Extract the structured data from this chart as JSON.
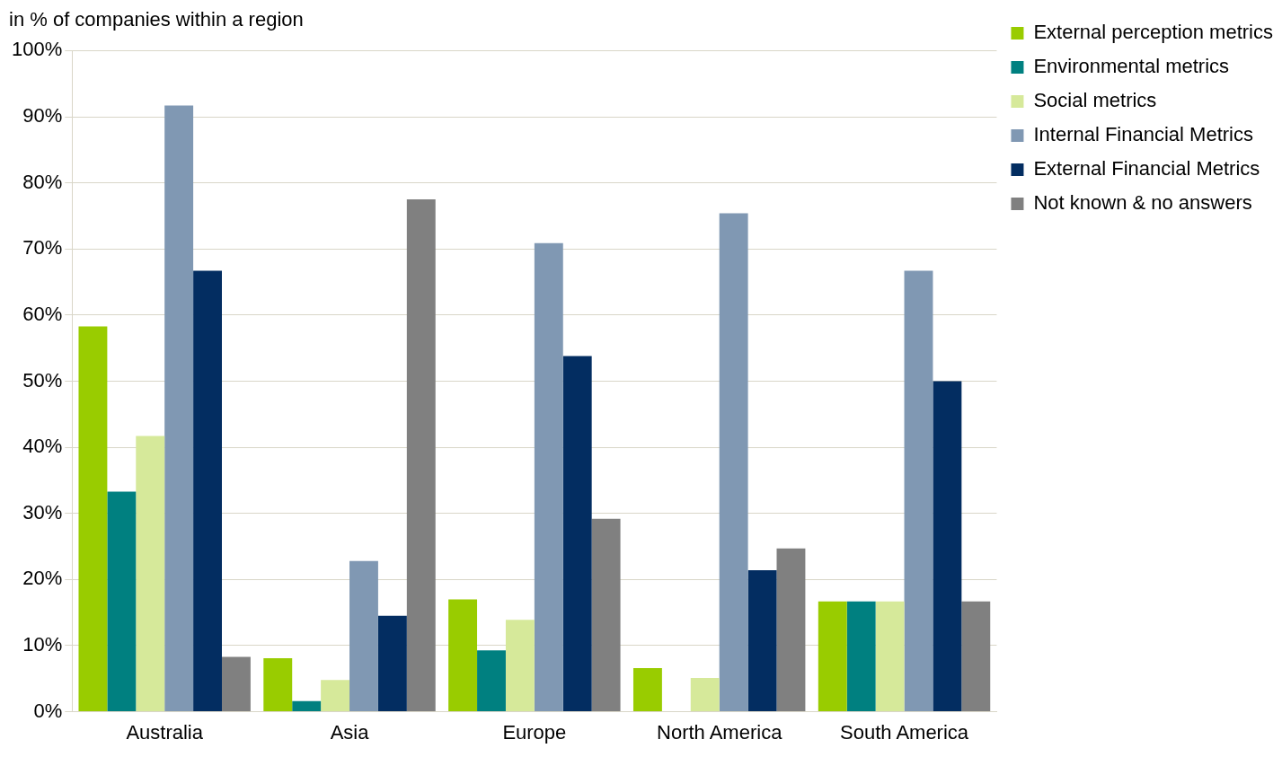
{
  "chart_data": {
    "type": "bar",
    "ylabel": "in % of companies within a region",
    "categories": [
      "Australia",
      "Asia",
      "Europe",
      "North America",
      "South America"
    ],
    "series": [
      {
        "name": "External perception metrics",
        "color": "#99cc00",
        "values": [
          58.3,
          8.1,
          17.0,
          6.6,
          16.7
        ]
      },
      {
        "name": "Environmental metrics",
        "color": "#008080",
        "values": [
          33.3,
          1.6,
          9.3,
          0,
          16.7
        ]
      },
      {
        "name": "Social metrics",
        "color": "#d6e99a",
        "values": [
          41.7,
          4.8,
          13.9,
          5.1,
          16.7
        ]
      },
      {
        "name": "Internal Financial Metrics",
        "color": "#8098b3",
        "values": [
          91.7,
          22.8,
          70.9,
          75.4,
          66.7
        ]
      },
      {
        "name": "External Financial Metrics",
        "color": "#032d61",
        "values": [
          66.7,
          14.5,
          53.8,
          21.4,
          50.0
        ]
      },
      {
        "name": "Not known & no answers",
        "color": "#808080",
        "values": [
          8.3,
          77.5,
          29.2,
          24.7,
          16.7
        ]
      }
    ],
    "ylim": [
      0,
      100
    ],
    "yticks": [
      {
        "value": 0,
        "label": "0%"
      },
      {
        "value": 10,
        "label": "10%"
      },
      {
        "value": 20,
        "label": "20%"
      },
      {
        "value": 30,
        "label": "30%"
      },
      {
        "value": 40,
        "label": "40%"
      },
      {
        "value": 50,
        "label": "50%"
      },
      {
        "value": 60,
        "label": "60%"
      },
      {
        "value": 70,
        "label": "70%"
      },
      {
        "value": 80,
        "label": "80%"
      },
      {
        "value": 90,
        "label": "90%"
      },
      {
        "value": 100,
        "label": "100%"
      }
    ],
    "grid": "y",
    "legend": "top right"
  }
}
